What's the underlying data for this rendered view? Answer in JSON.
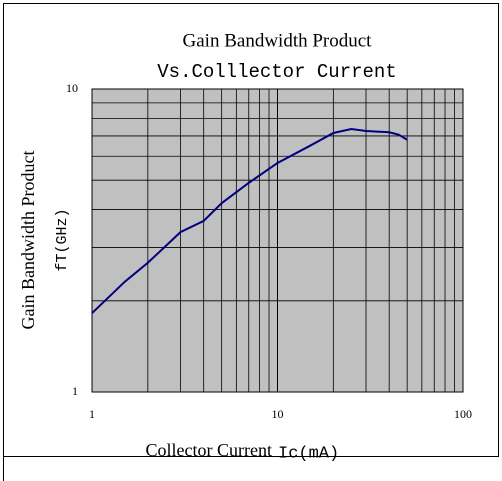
{
  "chart_data": {
    "type": "line",
    "title": "Gain Bandwidth Product",
    "subtitle": "Vs.Colllector Current",
    "y_label": "Gain Bandwidth Product",
    "y_unit_label": "fT(GHz)",
    "x_label": "Collector Current",
    "x_unit_label": "Ic(mA)",
    "x": [
      1,
      1.5,
      2,
      3,
      4,
      5,
      7,
      10,
      15,
      20,
      25,
      30,
      40,
      45,
      50
    ],
    "series": [
      {
        "name": null,
        "color": "#000080",
        "values": [
          1.82,
          2.31,
          2.67,
          3.37,
          3.67,
          4.2,
          4.9,
          5.7,
          6.5,
          7.16,
          7.38,
          7.27,
          7.2,
          7.07,
          6.8
        ]
      }
    ],
    "xlim": [
      1,
      100
    ],
    "ylim": [
      1,
      10
    ],
    "xticks": [
      1,
      10,
      100
    ],
    "yticks": [
      1,
      10
    ],
    "log_x": true,
    "log_y": true,
    "grid": true,
    "minor_grid": true,
    "plot_background": "#c0c0c0"
  }
}
